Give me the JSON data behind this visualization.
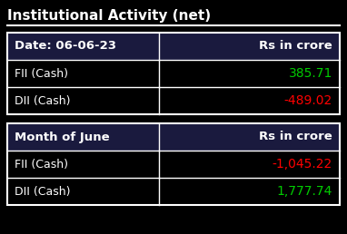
{
  "title": "Institutional Activity (net)",
  "background_color": "#000000",
  "title_color": "#ffffff",
  "title_fontsize": 11,
  "table_border_color": "#ffffff",
  "header_bg_color": "#1a1a3e",
  "row_bg_color": "#000000",
  "section1_header_col1": "Date: 06-06-23",
  "section1_header_col2": "Rs in crore",
  "section1_rows": [
    {
      "label": "FII (Cash)",
      "value": "385.71",
      "value_color": "#00cc00"
    },
    {
      "label": "DII (Cash)",
      "value": "-489.02",
      "value_color": "#ff0000"
    }
  ],
  "section2_header_col1": "Month of June",
  "section2_header_col2": "Rs in crore",
  "section2_rows": [
    {
      "label": "FII (Cash)",
      "value": "-1,045.22",
      "value_color": "#ff0000"
    },
    {
      "label": "DII (Cash)",
      "value": "1,777.74",
      "value_color": "#00cc00"
    }
  ],
  "label_color": "#ffffff",
  "header_text_color": "#ffffff",
  "label_fontsize": 9,
  "value_fontsize": 10,
  "header_fontsize": 9.5,
  "fig_width": 3.82,
  "fig_height": 2.58,
  "dpi": 100
}
